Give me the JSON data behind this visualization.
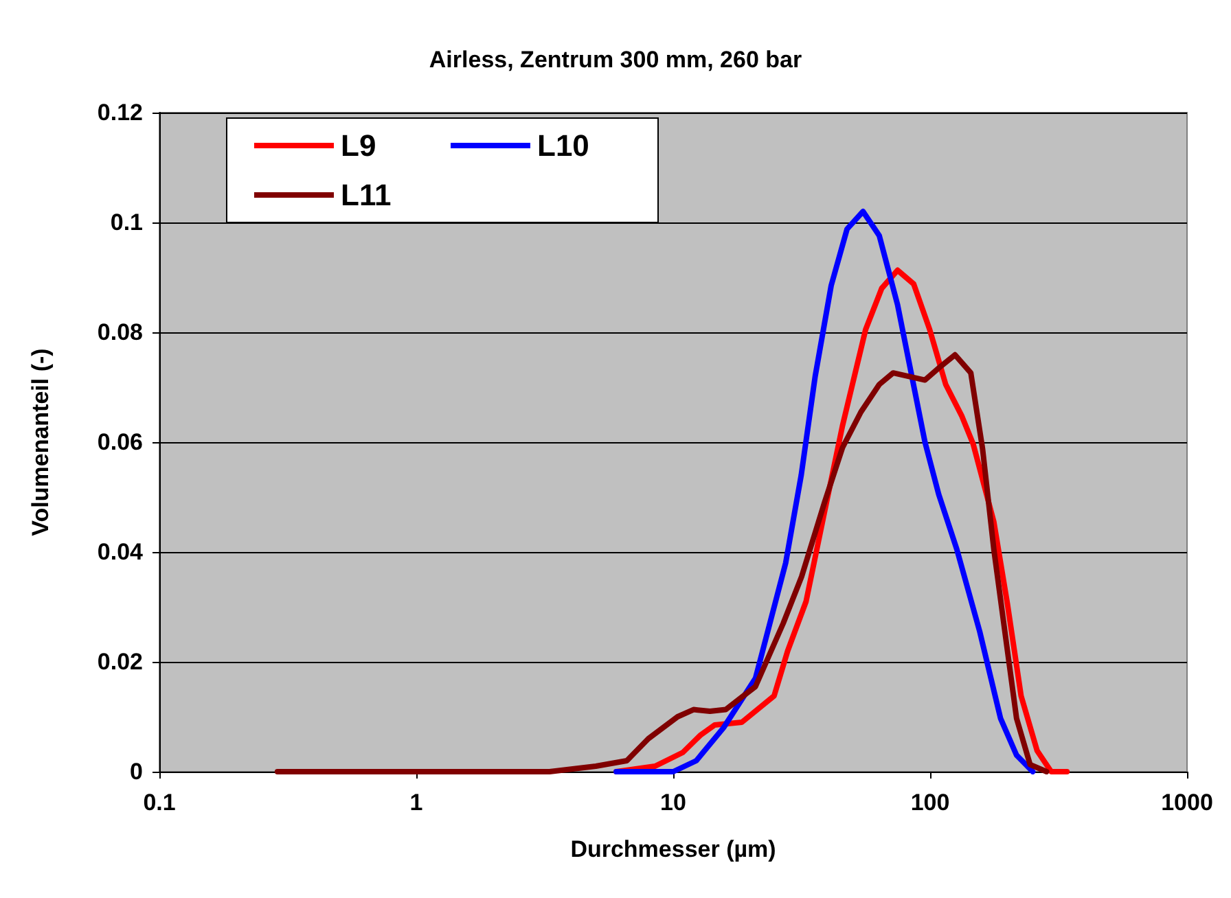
{
  "chart_data": {
    "type": "line",
    "title": "Airless, Zentrum 300 mm, 260 bar",
    "xlabel": "Durchmesser (µm)",
    "ylabel": "Volumenanteil (-)",
    "log": "x",
    "xlim": [
      0.1,
      1000
    ],
    "xticks": [
      0.1,
      1,
      10,
      100,
      1000
    ],
    "ylim": [
      0,
      0.12
    ],
    "yticks": [
      0,
      0.02,
      0.04,
      0.06,
      0.08,
      0.1,
      0.12
    ],
    "grid": "y",
    "legend": "top left",
    "marker": "none",
    "line_style": "solid",
    "series": [
      {
        "name": "L9",
        "color": "#ff0000",
        "x": [
          6,
          8.5,
          10.9,
          12.8,
          14.5,
          18.5,
          24.7,
          27.9,
          32.9,
          38.7,
          45.6,
          56.1,
          64.8,
          74.7,
          86.3,
          99.6,
          115,
          133,
          147,
          177,
          200,
          226,
          261,
          296,
          341
        ],
        "values": [
          0,
          0.001,
          0.0035,
          0.0067,
          0.0085,
          0.009,
          0.0138,
          0.022,
          0.031,
          0.047,
          0.063,
          0.0805,
          0.088,
          0.0913,
          0.0888,
          0.0805,
          0.0705,
          0.0647,
          0.0597,
          0.0455,
          0.0305,
          0.0138,
          0.0038,
          0,
          0
        ]
      },
      {
        "name": "L10",
        "color": "#0000ff",
        "x": [
          6,
          10,
          12.3,
          15.7,
          20.9,
          27.4,
          31.5,
          35.7,
          41.2,
          47.5,
          54.8,
          63.4,
          74.7,
          95.5,
          108,
          127,
          156,
          188,
          217,
          251
        ],
        "values": [
          0,
          0,
          0.002,
          0.008,
          0.017,
          0.038,
          0.054,
          0.072,
          0.0885,
          0.0988,
          0.102,
          0.0976,
          0.085,
          0.06,
          0.0505,
          0.0405,
          0.0255,
          0.0097,
          0.003,
          0
        ]
      },
      {
        "name": "L11",
        "color": "#800000",
        "x": [
          0.288,
          1,
          3.3,
          5,
          6.6,
          8,
          10.4,
          12,
          13.9,
          16,
          20.9,
          26.8,
          31.6,
          38.8,
          45.6,
          53.8,
          63.4,
          71.8,
          95.5,
          110,
          125,
          144,
          160,
          177,
          200,
          217,
          245,
          284
        ],
        "values": [
          0,
          0,
          0,
          0.001,
          0.002,
          0.006,
          0.01,
          0.0113,
          0.011,
          0.0113,
          0.0155,
          0.027,
          0.0355,
          0.049,
          0.059,
          0.0655,
          0.0705,
          0.0726,
          0.0713,
          0.0738,
          0.0759,
          0.0726,
          0.0588,
          0.0405,
          0.022,
          0.0097,
          0.0013,
          0
        ]
      }
    ]
  }
}
